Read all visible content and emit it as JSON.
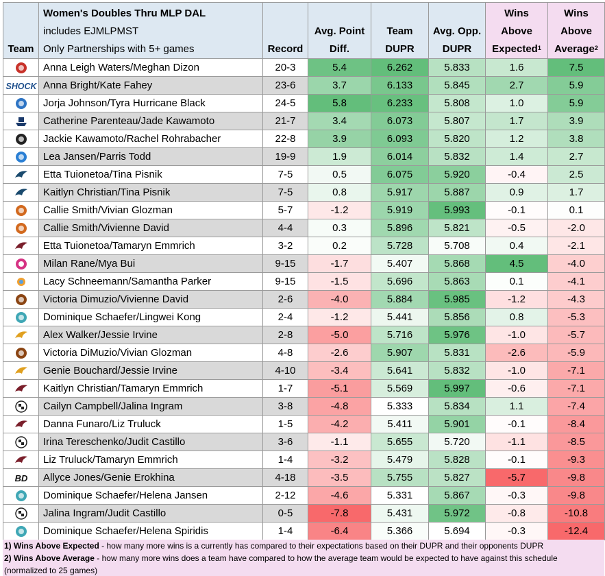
{
  "header": {
    "team": "Team",
    "title": "Women's Doubles Thru MLP DAL",
    "subtitle1": "includes EJMLPMST",
    "subtitle2": "Only Partnerships with 5+ games",
    "record": "Record",
    "avg_point_1": "Avg. Point",
    "avg_point_2": "Diff.",
    "team_dupr_1": "Team",
    "team_dupr_2": "DUPR",
    "opp_dupr_1": "Avg. Opp.",
    "opp_dupr_2": "DUPR",
    "wae_1": "Wins",
    "wae_2": "Above",
    "wae_3": "Expected",
    "wae_sup": "1",
    "waa_1": "Wins",
    "waa_2": "Above",
    "waa_3": "Average",
    "waa_sup": "2"
  },
  "colors": {
    "green_strong": "#63be7b",
    "red_strong": "#f8696b",
    "white": "#ffffff"
  },
  "rows": [
    {
      "logo": "red-mascot-icon",
      "color": "#c8322a",
      "name": "Anna Leigh Waters/Meghan Dizon",
      "record": "20-3",
      "apd": "5.4",
      "dupr": "6.262",
      "opp": "5.833",
      "wae": "1.6",
      "waa": "7.5"
    },
    {
      "logo": "shock-logo-icon",
      "color": "#1e4f8c",
      "name": "Anna Bright/Kate Fahey",
      "record": "23-6",
      "apd": "3.7",
      "dupr": "6.133",
      "opp": "5.845",
      "wae": "2.7",
      "waa": "5.9"
    },
    {
      "logo": "round-crest-icon",
      "color": "#2d74c4",
      "name": "Jorja Johnson/Tyra Hurricane Black",
      "record": "24-5",
      "apd": "5.8",
      "dupr": "6.233",
      "opp": "5.808",
      "wae": "1.0",
      "waa": "5.9"
    },
    {
      "logo": "ship-icon",
      "color": "#1b3a6b",
      "name": "Catherine Parenteau/Jade Kawamoto",
      "record": "21-7",
      "apd": "3.4",
      "dupr": "6.073",
      "opp": "5.807",
      "wae": "1.7",
      "waa": "3.9"
    },
    {
      "logo": "dark-seal-icon",
      "color": "#222222",
      "name": "Jackie Kawamoto/Rachel Rohrabacher",
      "record": "22-8",
      "apd": "3.9",
      "dupr": "6.093",
      "opp": "5.820",
      "wae": "1.2",
      "waa": "3.8"
    },
    {
      "logo": "orange-ball-icon",
      "color": "#2a7fd4",
      "name": "Lea Jansen/Parris Todd",
      "record": "19-9",
      "apd": "1.9",
      "dupr": "6.014",
      "opp": "5.832",
      "wae": "1.4",
      "waa": "2.7"
    },
    {
      "logo": "bird-icon",
      "color": "#1a4a6e",
      "name": "Etta Tuionetoa/Tina Pisnik",
      "record": "7-5",
      "apd": "0.5",
      "dupr": "6.075",
      "opp": "5.920",
      "wae": "-0.4",
      "waa": "2.5"
    },
    {
      "logo": "bird-icon",
      "color": "#1a4a6e",
      "name": "Kaitlyn Christian/Tina Pisnik",
      "record": "7-5",
      "apd": "0.8",
      "dupr": "5.917",
      "opp": "5.887",
      "wae": "0.9",
      "waa": "1.7"
    },
    {
      "logo": "flame-crest-icon",
      "color": "#d2691e",
      "name": "Callie Smith/Vivian Glozman",
      "record": "5-7",
      "apd": "-1.2",
      "dupr": "5.919",
      "opp": "5.993",
      "wae": "-0.1",
      "waa": "0.1"
    },
    {
      "logo": "flame-crest-icon",
      "color": "#d2691e",
      "name": "Callie Smith/Vivienne David",
      "record": "4-4",
      "apd": "0.3",
      "dupr": "5.896",
      "opp": "5.821",
      "wae": "-0.5",
      "waa": "-2.0"
    },
    {
      "logo": "wing-icon",
      "color": "#7a1f2b",
      "name": "Etta Tuionetoa/Tamaryn Emmrich",
      "record": "3-2",
      "apd": "0.2",
      "dupr": "5.728",
      "opp": "5.708",
      "wae": "0.4",
      "waa": "-2.1"
    },
    {
      "logo": "pink-circle-icon",
      "color": "#d63384",
      "name": "Milan Rane/Mya Bui",
      "record": "9-15",
      "apd": "-1.7",
      "dupr": "5.407",
      "opp": "5.868",
      "wae": "4.5",
      "waa": "-4.0"
    },
    {
      "logo": "sun-icon",
      "color": "#f0a030",
      "name": "Lacy Schneemann/Samantha Parker",
      "record": "9-15",
      "apd": "-1.5",
      "dupr": "5.696",
      "opp": "5.863",
      "wae": "0.1",
      "waa": "-4.1"
    },
    {
      "logo": "banner-crest-icon",
      "color": "#8b4513",
      "name": "Victoria Dimuzio/Vivienne David",
      "record": "2-6",
      "apd": "-4.0",
      "dupr": "5.884",
      "opp": "5.985",
      "wae": "-1.2",
      "waa": "-4.3"
    },
    {
      "logo": "mint-emblem-icon",
      "color": "#3fa7b5",
      "name": "Dominique Schaefer/Lingwei Kong",
      "record": "2-4",
      "apd": "-1.2",
      "dupr": "5.441",
      "opp": "5.856",
      "wae": "0.8",
      "waa": "-5.3"
    },
    {
      "logo": "golden-wings-icon",
      "color": "#e0a020",
      "name": "Alex Walker/Jessie Irvine",
      "record": "2-8",
      "apd": "-5.0",
      "dupr": "5.716",
      "opp": "5.976",
      "wae": "-1.0",
      "waa": "-5.7"
    },
    {
      "logo": "banner-crest-icon",
      "color": "#8b4513",
      "name": "Victoria DiMuzio/Vivian Glozman",
      "record": "4-8",
      "apd": "-2.6",
      "dupr": "5.907",
      "opp": "5.831",
      "wae": "-2.6",
      "waa": "-5.9"
    },
    {
      "logo": "golden-wings-icon",
      "color": "#e0a020",
      "name": "Genie Bouchard/Jessie Irvine",
      "record": "4-10",
      "apd": "-3.4",
      "dupr": "5.641",
      "opp": "5.832",
      "wae": "-1.0",
      "waa": "-7.1"
    },
    {
      "logo": "wing-icon",
      "color": "#7a1f2b",
      "name": "Kaitlyn Christian/Tamaryn Emmrich",
      "record": "1-7",
      "apd": "-5.1",
      "dupr": "5.569",
      "opp": "5.997",
      "wae": "-0.6",
      "waa": "-7.1"
    },
    {
      "logo": "checker-ball-icon",
      "color": "#222222",
      "name": "Cailyn Campbell/Jalina Ingram",
      "record": "3-8",
      "apd": "-4.8",
      "dupr": "5.333",
      "opp": "5.834",
      "wae": "1.1",
      "waa": "-7.4"
    },
    {
      "logo": "wing-icon",
      "color": "#7a1f2b",
      "name": "Danna Funaro/Liz Truluck",
      "record": "1-5",
      "apd": "-4.2",
      "dupr": "5.411",
      "opp": "5.901",
      "wae": "-0.1",
      "waa": "-8.4"
    },
    {
      "logo": "checker-ball-icon",
      "color": "#222222",
      "name": "Irina Tereschenko/Judit Castillo",
      "record": "3-6",
      "apd": "-1.1",
      "dupr": "5.655",
      "opp": "5.720",
      "wae": "-1.1",
      "waa": "-8.5"
    },
    {
      "logo": "wing-icon",
      "color": "#7a1f2b",
      "name": "Liz Truluck/Tamaryn Emmrich",
      "record": "1-4",
      "apd": "-3.2",
      "dupr": "5.479",
      "opp": "5.828",
      "wae": "-0.1",
      "waa": "-9.3"
    },
    {
      "logo": "bd-monogram-icon",
      "color": "#111111",
      "name": "Allyce Jones/Genie Erokhina",
      "record": "4-18",
      "apd": "-3.5",
      "dupr": "5.755",
      "opp": "5.827",
      "wae": "-5.7",
      "waa": "-9.8"
    },
    {
      "logo": "mint-emblem-icon",
      "color": "#3fa7b5",
      "name": "Dominique Schaefer/Helena Jansen",
      "record": "2-12",
      "apd": "-4.6",
      "dupr": "5.331",
      "opp": "5.867",
      "wae": "-0.3",
      "waa": "-9.8"
    },
    {
      "logo": "checker-ball-icon",
      "color": "#222222",
      "name": "Jalina Ingram/Judit Castillo",
      "record": "0-5",
      "apd": "-7.8",
      "dupr": "5.431",
      "opp": "5.972",
      "wae": "-0.8",
      "waa": "-10.8"
    },
    {
      "logo": "mint-emblem-icon",
      "color": "#3fa7b5",
      "name": "Dominique Schaefer/Helena Spiridis",
      "record": "1-4",
      "apd": "-6.4",
      "dupr": "5.366",
      "opp": "5.694",
      "wae": "-0.3",
      "waa": "-12.4"
    }
  ],
  "notes": {
    "n1_label": "1) Wins Above Expected",
    "n1_text": " - how many more wins is a currently has compared to their expectations based on their DUPR and their opponents DUPR",
    "n2_label": "2) Wins Above Average",
    "n2_text": " - how many more wins does a team have compared to how the average team would be expected to have against this schedule",
    "n3_text": "(normalized to 25 games)"
  }
}
